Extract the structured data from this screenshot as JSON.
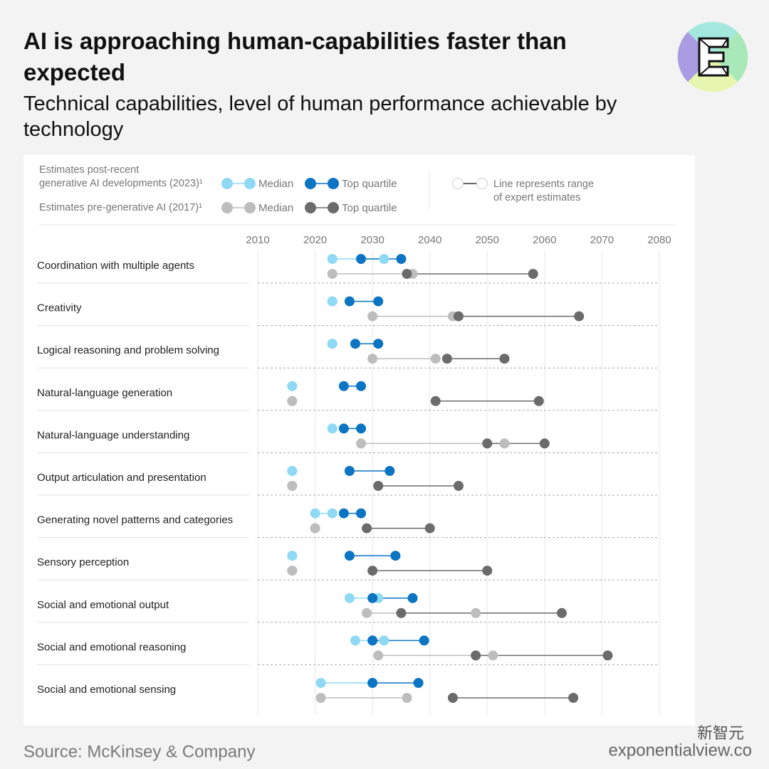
{
  "chart_data": {
    "type": "dumbbell",
    "title": "AI is approaching human-capabilities faster than expected",
    "subtitle": "Technical capabilities, level of human performance achievable by technology",
    "categories": [
      "Coordination with multiple agents",
      "Creativity",
      "Logical reasoning and problem solving",
      "Natural-language generation",
      "Natural-language understanding",
      "Output articulation and presentation",
      "Generating novel patterns and categories",
      "Sensory perception",
      "Social and emotional output",
      "Social and emotional reasoning",
      "Social and emotional sensing"
    ],
    "groups": [
      {
        "label": "Estimates post-recent\ngenerative AI developments (2023)¹",
        "series": [
          {
            "name": "Median",
            "color": "#8fd9f5",
            "low": [
              2023,
              2023,
              2023,
              2016,
              2023,
              2016,
              2020,
              2016,
              2026,
              2027,
              2021
            ],
            "high": [
              2032,
              2023,
              2023,
              2016,
              2023,
              2016,
              2023,
              2016,
              2031,
              2032,
              2030
            ]
          },
          {
            "name": "Top quartile",
            "color": "#0b74c3",
            "low": [
              2028,
              2026,
              2027,
              2025,
              2025,
              2026,
              2025,
              2026,
              2030,
              2030,
              2030
            ],
            "high": [
              2035,
              2031,
              2031,
              2028,
              2028,
              2033,
              2028,
              2034,
              2037,
              2039,
              2038
            ]
          }
        ]
      },
      {
        "label": "Estimates pre-generative AI (2017)¹",
        "series": [
          {
            "name": "Median",
            "color": "#bdbdbd",
            "low": [
              2023,
              2030,
              2030,
              2016,
              2028,
              2016,
              2020,
              2016,
              2029,
              2031,
              2021
            ],
            "high": [
              2037,
              2044,
              2041,
              2016,
              2053,
              2016,
              2020,
              2016,
              2048,
              2051,
              2036
            ]
          },
          {
            "name": "Top quartile",
            "color": "#6b6b6b",
            "low": [
              2036,
              2045,
              2043,
              2041,
              2050,
              2031,
              2029,
              2030,
              2035,
              2048,
              2044
            ],
            "high": [
              2058,
              2066,
              2053,
              2059,
              2060,
              2045,
              2040,
              2050,
              2063,
              2071,
              2065
            ]
          }
        ]
      }
    ],
    "range_note": "Line represents range\nof expert estimates",
    "xlim": [
      2010,
      2080
    ],
    "xticks": [
      2010,
      2020,
      2030,
      2040,
      2050,
      2060,
      2070,
      2080
    ],
    "grid": true
  },
  "source": "Source: McKinsey & Company",
  "brand": "exponentialview.co",
  "watermark": "新智元"
}
